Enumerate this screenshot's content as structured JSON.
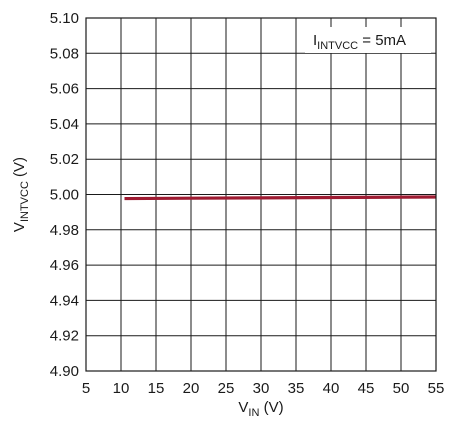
{
  "chart_data": {
    "type": "line",
    "x_axis": {
      "main": "V",
      "sub": "IN",
      "unit": " (V)",
      "range": [
        5,
        55
      ],
      "ticks": [
        5,
        10,
        15,
        20,
        25,
        30,
        35,
        40,
        45,
        50,
        55
      ]
    },
    "y_axis": {
      "main": "V",
      "sub": "INTVCC",
      "unit": " (V)",
      "range": [
        4.9,
        5.1
      ],
      "ticks": [
        "4.90",
        "4.92",
        "4.94",
        "4.96",
        "4.98",
        "5.00",
        "5.02",
        "5.04",
        "5.06",
        "5.08",
        "5.10"
      ]
    },
    "grid": true,
    "annotation": {
      "main": "I",
      "sub": "INTVCC",
      "rest": " = 5mA",
      "placement": "top-right"
    },
    "series": [
      {
        "color": "#9e1b32",
        "x": [
          10.5,
          20,
          30,
          40,
          50,
          55
        ],
        "y": [
          4.9977,
          4.9979,
          4.9981,
          4.9983,
          4.9985,
          4.9986
        ]
      }
    ]
  }
}
